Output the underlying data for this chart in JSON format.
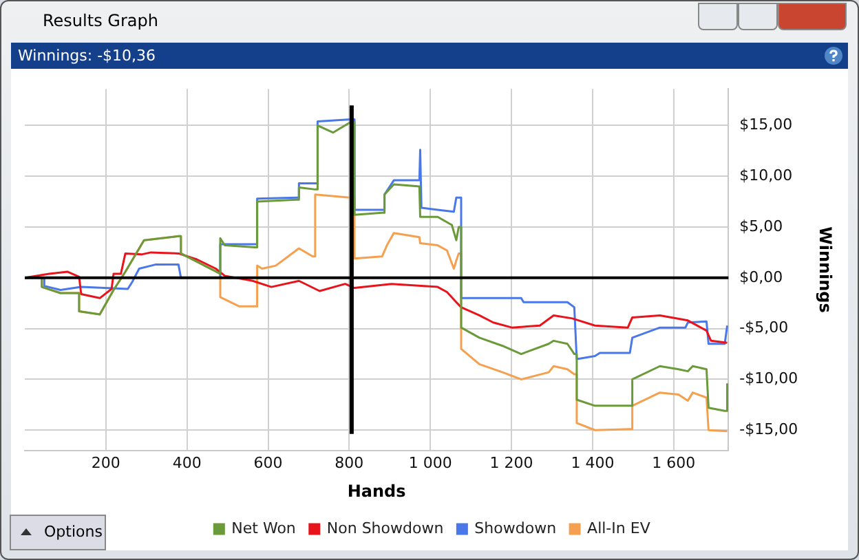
{
  "chart_data": {
    "type": "line",
    "title": "Results Graph",
    "subtitle": "Winnings: -$10,36",
    "xlabel": "Hands",
    "ylabel": "Winnings",
    "annotations": [
      "Options"
    ],
    "xlim": [
      0,
      1735
    ],
    "xticks": [
      200,
      400,
      600,
      800,
      {
        "value": 1000,
        "label": "1 000"
      },
      {
        "value": 1200,
        "label": "1 200"
      },
      {
        "value": 1400,
        "label": "1 400"
      },
      {
        "value": 1600,
        "label": "1 600"
      }
    ],
    "ylim": [
      -17,
      18.6
    ],
    "yticks": [
      {
        "value": -15,
        "label": "-$15,00"
      },
      {
        "value": -10,
        "label": "-$10,00"
      },
      {
        "value": -5,
        "label": "-$5,00"
      },
      {
        "value": 0,
        "label": "$0,00"
      },
      {
        "value": 5,
        "label": "$5,00"
      },
      {
        "value": 10,
        "label": "$10,00"
      },
      {
        "value": 15,
        "label": "$15,00"
      }
    ],
    "grid": true,
    "legend": "bottom",
    "marker": "none",
    "line_style": "solid",
    "ref_lines": [
      {
        "axis": "y",
        "value": 0,
        "color": "#000000"
      },
      {
        "axis": "x",
        "value": 806,
        "color": "#000000"
      }
    ],
    "series": [
      {
        "name": "Net Won",
        "color": "#6b9a3a",
        "x": [
          0,
          42,
          42,
          88,
          134,
          134,
          185,
          219,
          248,
          294,
          379,
          385,
          385,
          482,
          482,
          493,
          567,
          573,
          573,
          670,
          676,
          676,
          716,
          722,
          722,
          760,
          802,
          813,
          813,
          881,
          887,
          887,
          910,
          973,
          975,
          1018,
          1053,
          1064,
          1070,
          1076,
          1076,
          1121,
          1178,
          1224,
          1292,
          1304,
          1338,
          1355,
          1361,
          1361,
          1406,
          1492,
          1498,
          1498,
          1566,
          1612,
          1635,
          1647,
          1681,
          1686,
          1726,
          1732,
          1732
        ],
        "values": [
          0,
          0,
          -0.9,
          -1.5,
          -1.5,
          -3.3,
          -3.6,
          -1.2,
          0.6,
          3.7,
          4.1,
          4.1,
          2.4,
          0.4,
          3.9,
          3.2,
          3.0,
          3.0,
          7.5,
          7.7,
          7.7,
          8.9,
          8.7,
          8.7,
          15.0,
          14.3,
          15.3,
          15.3,
          6.2,
          6.4,
          6.4,
          8.2,
          9.2,
          9.0,
          6.0,
          6.0,
          5.2,
          3.7,
          5.0,
          5.0,
          -4.9,
          -5.9,
          -6.7,
          -7.5,
          -6.5,
          -6.2,
          -6.5,
          -7.5,
          -7.5,
          -12.0,
          -12.6,
          -12.6,
          -12.6,
          -10.0,
          -8.7,
          -9.0,
          -9.2,
          -8.7,
          -9.0,
          -12.8,
          -13.1,
          -13.1,
          -10.4
        ]
      },
      {
        "name": "Non Showdown",
        "color": "#e8141b",
        "x": [
          0,
          60,
          105,
          134,
          139,
          185,
          214,
          219,
          237,
          248,
          288,
          311,
          379,
          425,
          471,
          493,
          562,
          608,
          676,
          727,
          790,
          813,
          904,
          1018,
          1041,
          1064,
          1076,
          1121,
          1155,
          1201,
          1270,
          1304,
          1350,
          1406,
          1487,
          1498,
          1566,
          1635,
          1681,
          1692,
          1732
        ],
        "values": [
          0,
          0.4,
          0.6,
          0.1,
          -1.6,
          -2.0,
          -1.1,
          0.4,
          0.4,
          2.4,
          2.3,
          2.5,
          2.4,
          1.8,
          0.9,
          0.2,
          -0.3,
          -0.9,
          -0.3,
          -1.3,
          -0.6,
          -1.0,
          -0.6,
          -0.9,
          -1.4,
          -2.4,
          -2.9,
          -3.7,
          -4.4,
          -4.9,
          -4.7,
          -3.7,
          -4.0,
          -4.7,
          -4.9,
          -3.9,
          -3.7,
          -4.2,
          -5.2,
          -6.2,
          -6.4
        ]
      },
      {
        "name": "Showdown",
        "color": "#4a78e8",
        "x": [
          0,
          48,
          48,
          88,
          139,
          254,
          265,
          282,
          322,
          379,
          385,
          482,
          482,
          567,
          573,
          573,
          670,
          676,
          676,
          716,
          722,
          722,
          807,
          813,
          813,
          881,
          887,
          887,
          910,
          973,
          975,
          978,
          1018,
          1058,
          1064,
          1076,
          1076,
          1224,
          1230,
          1338,
          1355,
          1361,
          1406,
          1418,
          1492,
          1498,
          1566,
          1629,
          1635,
          1681,
          1686,
          1726,
          1732
        ],
        "values": [
          0,
          0,
          -0.8,
          -1.2,
          -0.9,
          -1.1,
          -0.4,
          0.9,
          1.3,
          1.3,
          0,
          0,
          3.3,
          3.3,
          3.3,
          7.8,
          7.9,
          7.9,
          9.3,
          9.3,
          9.3,
          15.4,
          15.6,
          15.6,
          6.7,
          6.7,
          6.7,
          8.2,
          9.6,
          9.6,
          12.6,
          6.9,
          6.7,
          6.5,
          7.9,
          7.9,
          -2.0,
          -2.0,
          -2.4,
          -2.4,
          -2.9,
          -8.0,
          -7.7,
          -7.4,
          -7.4,
          -5.9,
          -4.9,
          -4.9,
          -4.4,
          -4.3,
          -6.5,
          -6.5,
          -4.7
        ]
      },
      {
        "name": "All-In EV",
        "color": "#f5a04f",
        "x": [
          0,
          42,
          42,
          88,
          134,
          134,
          185,
          219,
          248,
          294,
          379,
          385,
          385,
          482,
          482,
          528,
          567,
          573,
          573,
          585,
          619,
          676,
          710,
          716,
          716,
          802,
          813,
          813,
          881,
          893,
          910,
          973,
          975,
          1018,
          1041,
          1058,
          1064,
          1070,
          1076,
          1076,
          1121,
          1178,
          1224,
          1292,
          1304,
          1338,
          1355,
          1361,
          1361,
          1406,
          1492,
          1498,
          1498,
          1566,
          1612,
          1635,
          1647,
          1681,
          1686,
          1732
        ],
        "values": [
          0,
          0,
          -0.9,
          -1.5,
          -1.5,
          -3.3,
          -3.6,
          -1.2,
          0.6,
          3.7,
          4.1,
          4.1,
          2.4,
          0.4,
          -1.9,
          -2.8,
          -2.8,
          -2.8,
          1.2,
          0.9,
          1.2,
          2.9,
          2.1,
          2.1,
          8.2,
          7.9,
          7.9,
          1.9,
          2.1,
          3.2,
          4.4,
          4.0,
          3.4,
          3.2,
          2.7,
          0.9,
          1.7,
          2.4,
          2.4,
          -7.0,
          -8.5,
          -9.3,
          -10.0,
          -9.3,
          -8.7,
          -9.0,
          -9.5,
          -9.5,
          -14.3,
          -15.0,
          -14.9,
          -14.9,
          -12.6,
          -11.3,
          -11.5,
          -12.1,
          -11.3,
          -11.8,
          -15.0,
          -15.1
        ]
      }
    ]
  }
}
